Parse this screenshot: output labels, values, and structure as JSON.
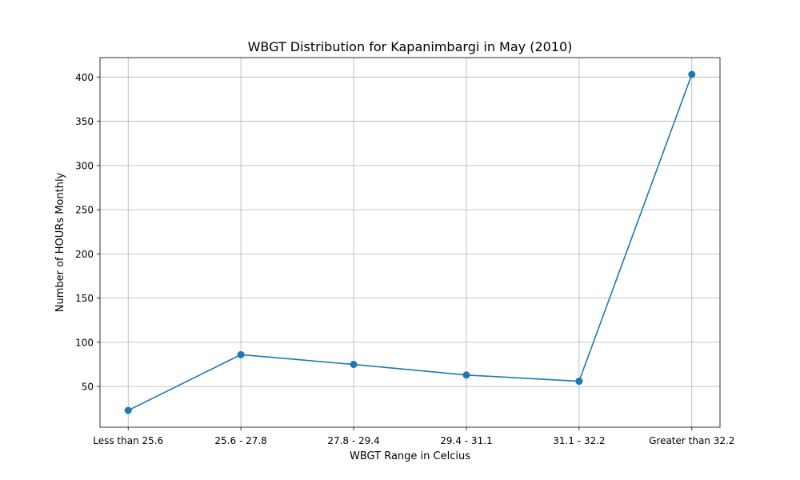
{
  "chart_data": {
    "type": "line",
    "title": "WBGT Distribution for Kapanimbargi in May (2010)",
    "xlabel": "WBGT Range in Celcius",
    "ylabel": "Number of HOURs Monthly",
    "categories": [
      "Less than 25.6",
      "25.6 - 27.8",
      "27.8 - 29.4",
      "29.4 - 31.1",
      "31.1 - 32.2",
      "Greater than 32.2"
    ],
    "values": [
      23,
      86,
      75,
      63,
      56,
      403
    ],
    "yticks": [
      50,
      100,
      150,
      200,
      250,
      300,
      350,
      400
    ],
    "ylim": [
      4,
      422
    ],
    "grid": true,
    "color": "#1f77b4"
  }
}
